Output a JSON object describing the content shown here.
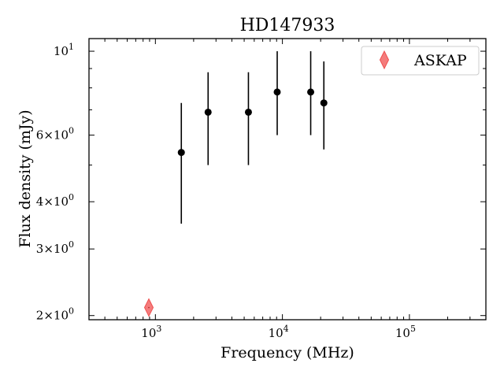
{
  "chart_data": {
    "type": "scatter",
    "title": "HD147933",
    "xlabel": "Frequency (MHz)",
    "ylabel": "Flux density (mJy)",
    "xscale": "log",
    "yscale": "log",
    "xlim": [
      300,
      400000
    ],
    "ylim": [
      1.95,
      10.8
    ],
    "grid": false,
    "legend_position": "top-right",
    "x_ticks": [
      {
        "value": 1000,
        "base": "10",
        "exp": "3"
      },
      {
        "value": 10000,
        "base": "10",
        "exp": "4"
      },
      {
        "value": 100000,
        "base": "10",
        "exp": "5"
      }
    ],
    "y_ticks": [
      {
        "value": 2,
        "coef": "2",
        "base": "10",
        "exp": "0"
      },
      {
        "value": 3,
        "coef": "3",
        "base": "10",
        "exp": "0"
      },
      {
        "value": 4,
        "coef": "4",
        "base": "10",
        "exp": "0"
      },
      {
        "value": 6,
        "coef": "6",
        "base": "10",
        "exp": "0"
      },
      {
        "value": 10,
        "coef": "",
        "base": "10",
        "exp": "1"
      }
    ],
    "series": [
      {
        "marker": "circle",
        "color": "#000000",
        "points": [
          {
            "x": 1600,
            "y": 5.4,
            "y_low": 3.5,
            "y_high": 7.3
          },
          {
            "x": 2600,
            "y": 6.9,
            "y_low": 5.0,
            "y_high": 8.8
          },
          {
            "x": 5400,
            "y": 6.9,
            "y_low": 5.0,
            "y_high": 8.8
          },
          {
            "x": 9100,
            "y": 7.8,
            "y_low": 6.0,
            "y_high": 10.0
          },
          {
            "x": 16700,
            "y": 7.8,
            "y_low": 6.0,
            "y_high": 10.0
          },
          {
            "x": 21200,
            "y": 7.3,
            "y_low": 5.5,
            "y_high": 9.4
          }
        ]
      },
      {
        "name": "ASKAP",
        "marker": "thin-diamond",
        "color": "#f05050",
        "points": [
          {
            "x": 888,
            "y": 2.1
          }
        ]
      }
    ]
  }
}
